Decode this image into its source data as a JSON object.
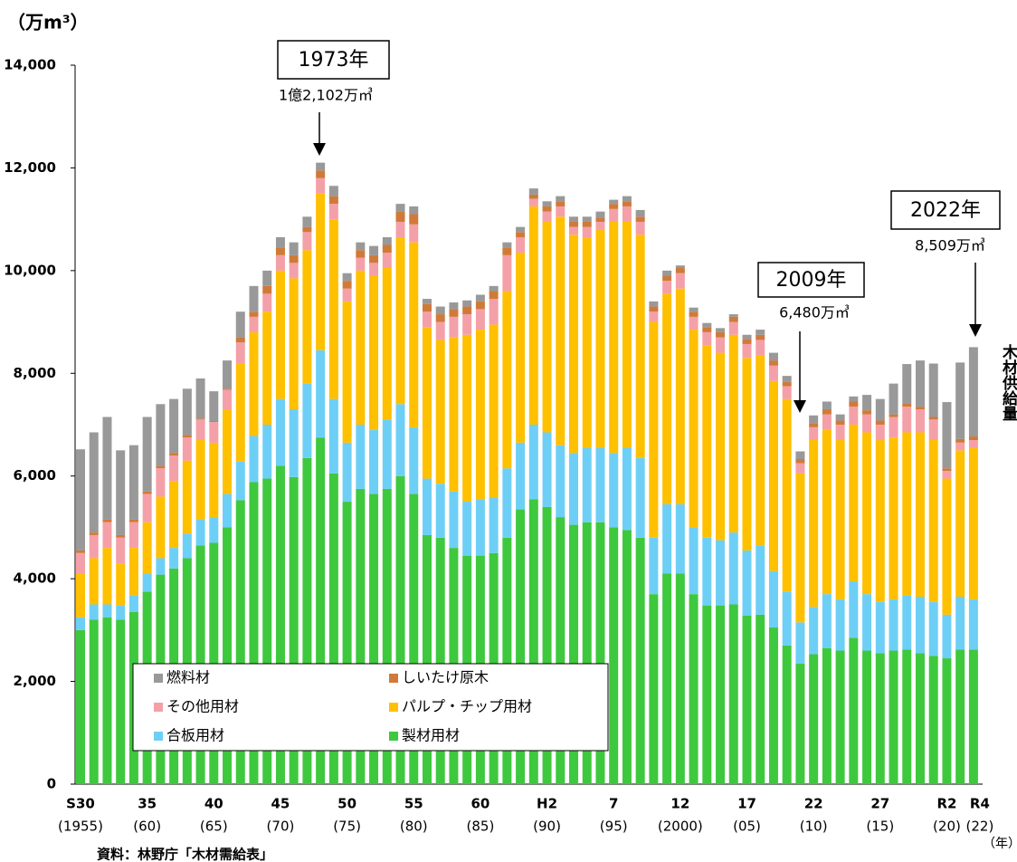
{
  "chart_data": {
    "type": "bar",
    "stacked": true,
    "y_label": "（万m³）",
    "x_unit": "（年）",
    "source": "資料：林野庁「木材需給表」",
    "side_label": "木材供給量",
    "categories": [
      "S30",
      null,
      null,
      null,
      null,
      "35",
      null,
      null,
      null,
      null,
      "40",
      null,
      null,
      null,
      null,
      "45",
      null,
      null,
      null,
      null,
      "50",
      null,
      null,
      null,
      null,
      "55",
      null,
      null,
      null,
      null,
      "60",
      null,
      null,
      null,
      null,
      "H2",
      null,
      null,
      null,
      null,
      "7",
      null,
      null,
      null,
      null,
      "12",
      null,
      null,
      null,
      null,
      "17",
      null,
      null,
      null,
      null,
      "22",
      null,
      null,
      null,
      null,
      "27",
      null,
      null,
      null,
      null,
      "R2",
      null,
      "R4"
    ],
    "category_years": [
      "(1955)",
      null,
      null,
      null,
      null,
      "(60)",
      null,
      null,
      null,
      null,
      "(65)",
      null,
      null,
      null,
      null,
      "(70)",
      null,
      null,
      null,
      null,
      "(75)",
      null,
      null,
      null,
      null,
      "(80)",
      null,
      null,
      null,
      null,
      "(85)",
      null,
      null,
      null,
      null,
      "(90)",
      null,
      null,
      null,
      null,
      "(95)",
      null,
      null,
      null,
      null,
      "(2000)",
      null,
      null,
      null,
      null,
      "(05)",
      null,
      null,
      null,
      null,
      "(10)",
      null,
      null,
      null,
      null,
      "(15)",
      null,
      null,
      null,
      null,
      "(20)",
      null,
      "(22)"
    ],
    "series": [
      {
        "name": "製材用材",
        "color": "#3ec83e",
        "values": [
          3000,
          3200,
          3250,
          3200,
          3350,
          3750,
          4080,
          4200,
          4400,
          4650,
          4700,
          5000,
          5530,
          5880,
          5950,
          6200,
          5980,
          6350,
          6750,
          6050,
          5500,
          5750,
          5650,
          5750,
          6000,
          5650,
          4850,
          4800,
          4600,
          4450,
          4450,
          4500,
          4800,
          5350,
          5550,
          5400,
          5200,
          5050,
          5100,
          5100,
          5000,
          4950,
          4800,
          3700,
          4100,
          4100,
          3700,
          3480,
          3480,
          3500,
          3280,
          3300,
          3050,
          2700,
          2350,
          2530,
          2650,
          2600,
          2850,
          2600,
          2550,
          2600,
          2620,
          2550,
          2500,
          2450,
          2620,
          2620
        ]
      },
      {
        "name": "合板用材",
        "color": "#6ecff6",
        "values": [
          250,
          300,
          250,
          280,
          330,
          350,
          320,
          400,
          480,
          500,
          500,
          650,
          750,
          900,
          1050,
          1300,
          1320,
          1450,
          1700,
          1450,
          1150,
          1250,
          1250,
          1350,
          1400,
          1300,
          1100,
          1050,
          1100,
          1050,
          1100,
          1080,
          1350,
          1300,
          1450,
          1450,
          1400,
          1400,
          1450,
          1450,
          1450,
          1600,
          1550,
          1100,
          1350,
          1350,
          1300,
          1320,
          1270,
          1400,
          1270,
          1350,
          1100,
          1050,
          800,
          920,
          1050,
          1000,
          1100,
          1100,
          1000,
          1000,
          1060,
          1100,
          1050,
          850,
          1030,
          980
        ]
      },
      {
        "name": "パルプ・チップ用材",
        "color": "#ffc000",
        "values": [
          850,
          900,
          1100,
          820,
          920,
          1000,
          1200,
          1300,
          1420,
          1550,
          1450,
          1650,
          1920,
          2020,
          2200,
          2500,
          2550,
          2600,
          3050,
          3500,
          2750,
          3000,
          3000,
          2950,
          3250,
          3600,
          2950,
          2800,
          3000,
          3250,
          3300,
          3370,
          3450,
          3700,
          4250,
          4100,
          4450,
          4250,
          4100,
          4250,
          4500,
          4400,
          4350,
          4200,
          4100,
          4200,
          3850,
          3750,
          3650,
          3850,
          3750,
          3700,
          3700,
          3750,
          2900,
          3250,
          3200,
          3100,
          3050,
          3150,
          3150,
          3150,
          3170,
          3200,
          3150,
          2650,
          2850,
          2950
        ]
      },
      {
        "name": "その他用材",
        "color": "#f4a0a8",
        "values": [
          400,
          450,
          500,
          500,
          500,
          550,
          550,
          500,
          450,
          400,
          400,
          380,
          400,
          300,
          350,
          300,
          300,
          350,
          300,
          300,
          250,
          250,
          250,
          300,
          300,
          350,
          300,
          350,
          400,
          400,
          400,
          500,
          700,
          300,
          150,
          200,
          200,
          150,
          200,
          150,
          250,
          300,
          250,
          200,
          250,
          300,
          250,
          250,
          300,
          250,
          270,
          300,
          300,
          250,
          200,
          250,
          300,
          300,
          350,
          350,
          300,
          400,
          500,
          450,
          400,
          150,
          150,
          150
        ]
      },
      {
        "name": "しいたけ原木",
        "color": "#d07a3a",
        "values": [
          50,
          50,
          50,
          50,
          50,
          50,
          50,
          50,
          50,
          20,
          20,
          20,
          100,
          100,
          150,
          150,
          150,
          100,
          150,
          150,
          150,
          150,
          150,
          150,
          200,
          200,
          150,
          150,
          150,
          150,
          150,
          150,
          150,
          100,
          80,
          100,
          100,
          100,
          100,
          80,
          100,
          100,
          100,
          100,
          100,
          100,
          100,
          100,
          100,
          100,
          100,
          100,
          100,
          80,
          80,
          80,
          100,
          80,
          100,
          80,
          80,
          50,
          70,
          50,
          50,
          50,
          70,
          70
        ]
      },
      {
        "name": "燃料材",
        "color": "#999999",
        "values": [
          1970,
          1950,
          2000,
          1650,
          1450,
          1450,
          1200,
          1050,
          900,
          780,
          580,
          550,
          500,
          500,
          300,
          200,
          250,
          200,
          152,
          200,
          150,
          150,
          180,
          150,
          150,
          150,
          100,
          150,
          130,
          120,
          130,
          100,
          100,
          100,
          120,
          100,
          100,
          100,
          100,
          120,
          80,
          100,
          130,
          100,
          100,
          50,
          80,
          80,
          80,
          50,
          80,
          100,
          150,
          120,
          150,
          150,
          150,
          120,
          100,
          300,
          420,
          600,
          760,
          900,
          1040,
          1290,
          1490,
          1739
        ]
      }
    ],
    "ylim": [
      0,
      14000
    ],
    "yticks": [
      0,
      {
        "value": 2000,
        "label": "2,000"
      },
      {
        "value": 4000,
        "label": "4,000"
      },
      {
        "value": 6000,
        "label": "6,000"
      },
      {
        "value": 8000,
        "label": "8,000"
      },
      {
        "value": 10000,
        "label": "10,000"
      },
      {
        "value": 12000,
        "label": "12,000"
      },
      {
        "value": 14000,
        "label": "14,000"
      }
    ],
    "annotations": [
      {
        "label": "1973年",
        "note": "1億2,102万㎥"
      },
      {
        "label": "2009年",
        "note": "6,480万㎥"
      },
      {
        "label": "2022年",
        "note": "8,509万㎥"
      }
    ]
  }
}
